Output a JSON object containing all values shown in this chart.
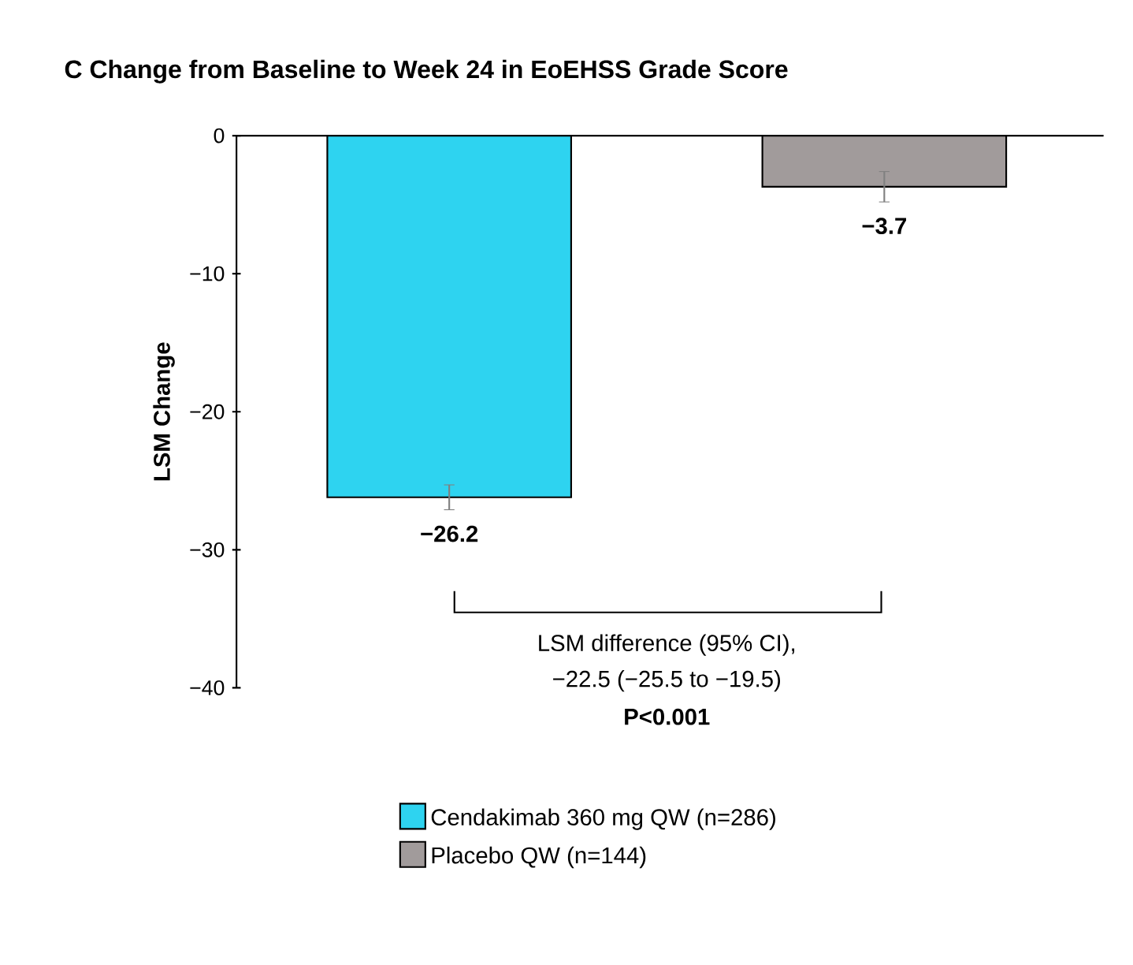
{
  "chart_data": {
    "type": "bar",
    "title": "C  Change from Baseline to Week 24 in EoEHSS Grade Score",
    "ylabel": "LSM Change",
    "categories": [
      null,
      null
    ],
    "series": [
      {
        "name": "Cendakimab 360 mg QW (n=286)",
        "color": "#2ed3f0",
        "values": [
          -26.2,
          null
        ],
        "errors": [
          0.9,
          null
        ],
        "value_labels": [
          "−26.2",
          null
        ]
      },
      {
        "name": "Placebo QW (n=144)",
        "color": "#a19b9b",
        "values": [
          null,
          -3.7
        ],
        "errors": [
          null,
          1.1
        ],
        "value_labels": [
          null,
          "−3.7"
        ]
      }
    ],
    "ylim": [
      -40,
      0
    ],
    "yticks": [
      {
        "value": 0,
        "label": "0"
      },
      {
        "value": -10,
        "label": "−10"
      },
      {
        "value": -20,
        "label": "−20"
      },
      {
        "value": -30,
        "label": "−30"
      },
      {
        "value": -40,
        "label": "−40"
      }
    ],
    "annotations": [
      "LSM difference (95% CI),",
      "−22.5 (−25.5 to −19.5)",
      "**P<0.001**"
    ],
    "grid": false,
    "legend": "bottom"
  }
}
